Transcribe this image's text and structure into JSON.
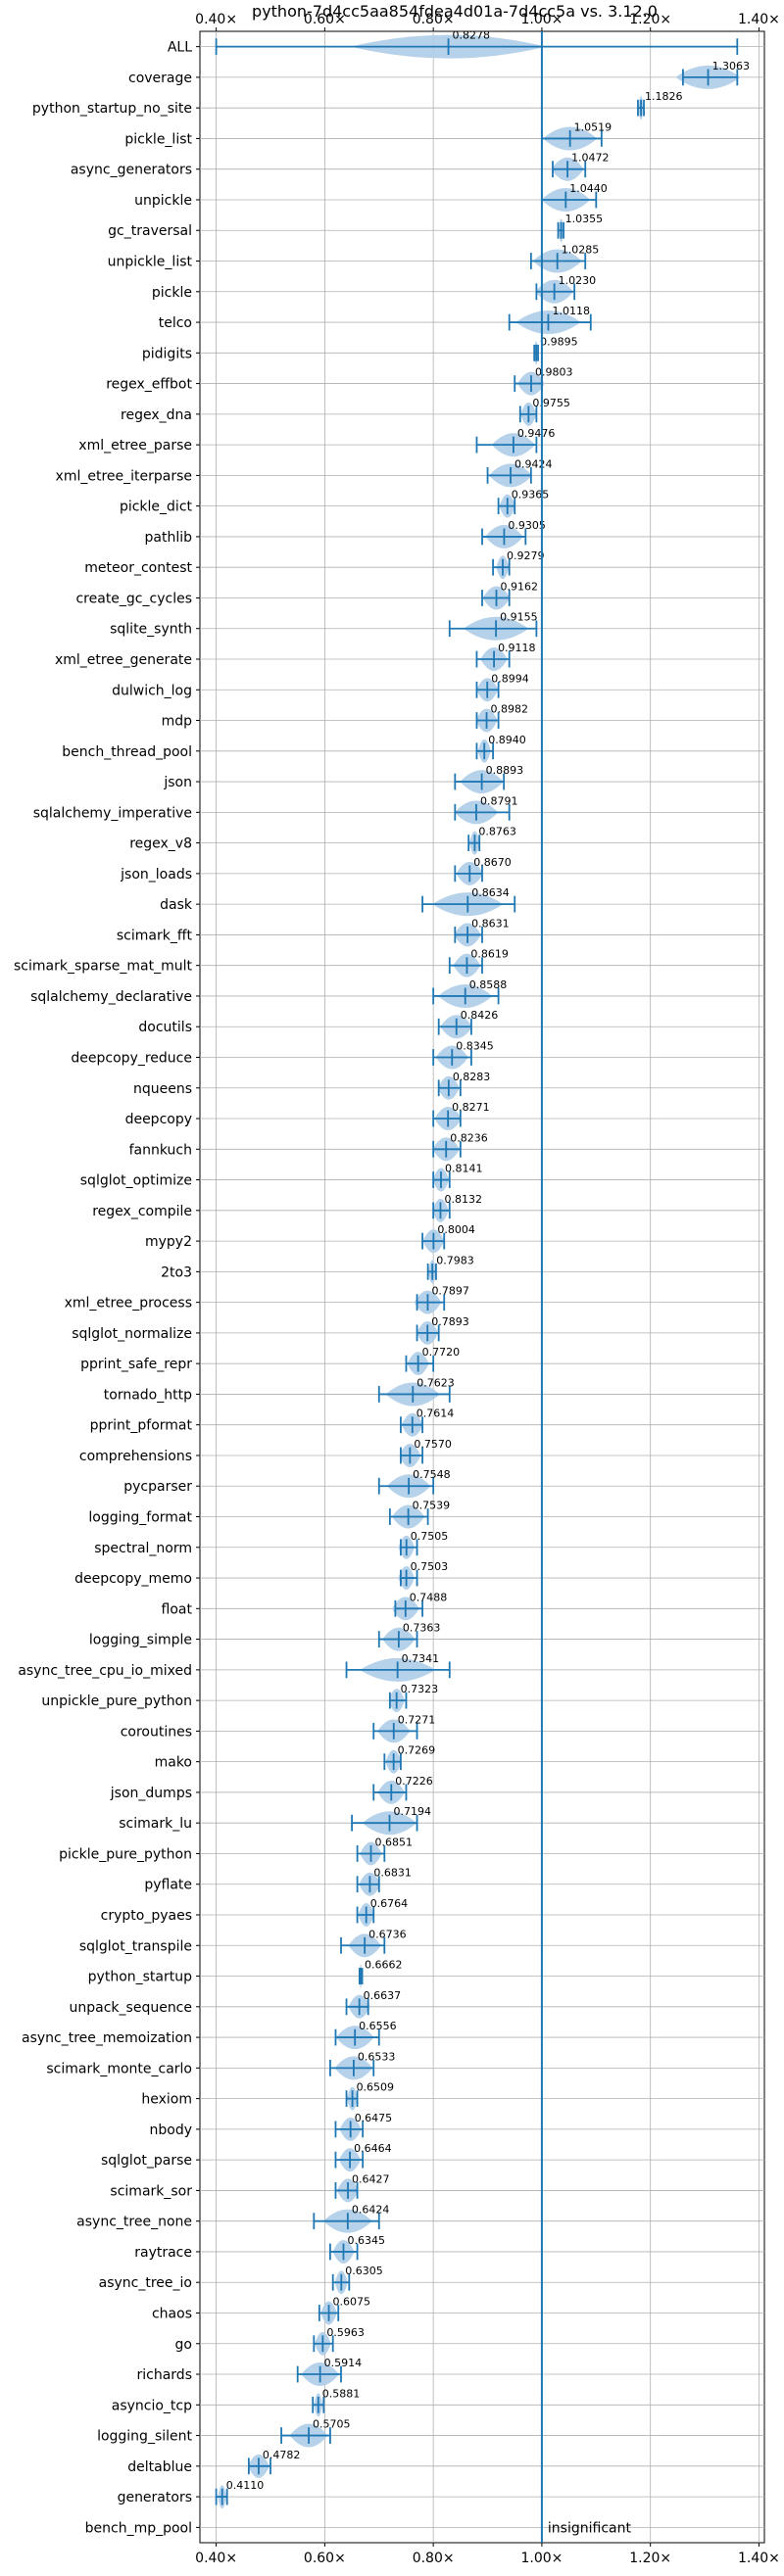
{
  "chart_data": {
    "type": "violin",
    "title": "python-7d4cc5aa854fdea4d01a-7d4cc5a vs. 3.12.0",
    "xlim": [
      0.37,
      1.41
    ],
    "x_ticks": [
      0.4,
      0.6,
      0.8,
      1.0,
      1.2,
      1.4
    ],
    "x_tick_labels": [
      "0.40×",
      "0.60×",
      "0.80×",
      "1.00×",
      "1.20×",
      "1.40×"
    ],
    "reference_line": 1.0,
    "grid": true,
    "color": "#1f77b4",
    "fill_color": "#aecde8",
    "rows": [
      {
        "name": "ALL",
        "value": 0.8278,
        "min": 0.4,
        "max": 1.36,
        "label": "0.8278",
        "spread": 0.18
      },
      {
        "name": "coverage",
        "value": 1.3063,
        "min": 1.26,
        "max": 1.36,
        "label": "1.3063",
        "spread": 0.06
      },
      {
        "name": "python_startup_no_site",
        "value": 1.1826,
        "min": 1.177,
        "max": 1.188,
        "label": "1.1826",
        "spread": 0.005
      },
      {
        "name": "pickle_list",
        "value": 1.0519,
        "min": 1.0,
        "max": 1.11,
        "label": "1.0519",
        "spread": 0.05
      },
      {
        "name": "async_generators",
        "value": 1.0472,
        "min": 1.02,
        "max": 1.08,
        "label": "1.0472",
        "spread": 0.03
      },
      {
        "name": "unpickle",
        "value": 1.044,
        "min": 1.0,
        "max": 1.1,
        "label": "1.0440",
        "spread": 0.045
      },
      {
        "name": "gc_traversal",
        "value": 1.0355,
        "min": 1.03,
        "max": 1.04,
        "label": "1.0355",
        "spread": 0.005
      },
      {
        "name": "unpickle_list",
        "value": 1.0285,
        "min": 0.98,
        "max": 1.08,
        "label": "1.0285",
        "spread": 0.045
      },
      {
        "name": "pickle",
        "value": 1.023,
        "min": 0.99,
        "max": 1.06,
        "label": "1.0230",
        "spread": 0.035
      },
      {
        "name": "telco",
        "value": 1.0118,
        "min": 0.94,
        "max": 1.09,
        "label": "1.0118",
        "spread": 0.06
      },
      {
        "name": "pidigits",
        "value": 0.9895,
        "min": 0.986,
        "max": 0.993,
        "label": "0.9895",
        "spread": 0.004
      },
      {
        "name": "regex_effbot",
        "value": 0.9803,
        "min": 0.95,
        "max": 1.0,
        "label": "0.9803",
        "spread": 0.025
      },
      {
        "name": "regex_dna",
        "value": 0.9755,
        "min": 0.96,
        "max": 0.99,
        "label": "0.9755",
        "spread": 0.015
      },
      {
        "name": "xml_etree_parse",
        "value": 0.9476,
        "min": 0.88,
        "max": 0.99,
        "label": "0.9476",
        "spread": 0.04
      },
      {
        "name": "xml_etree_iterparse",
        "value": 0.9424,
        "min": 0.9,
        "max": 0.98,
        "label": "0.9424",
        "spread": 0.04
      },
      {
        "name": "pickle_dict",
        "value": 0.9365,
        "min": 0.92,
        "max": 0.95,
        "label": "0.9365",
        "spread": 0.015
      },
      {
        "name": "pathlib",
        "value": 0.9305,
        "min": 0.89,
        "max": 0.97,
        "label": "0.9305",
        "spread": 0.035
      },
      {
        "name": "meteor_contest",
        "value": 0.9279,
        "min": 0.91,
        "max": 0.94,
        "label": "0.9279",
        "spread": 0.012
      },
      {
        "name": "create_gc_cycles",
        "value": 0.9162,
        "min": 0.89,
        "max": 0.94,
        "label": "0.9162",
        "spread": 0.025
      },
      {
        "name": "sqlite_synth",
        "value": 0.9155,
        "min": 0.83,
        "max": 0.99,
        "label": "0.9155",
        "spread": 0.06
      },
      {
        "name": "xml_etree_generate",
        "value": 0.9118,
        "min": 0.88,
        "max": 0.94,
        "label": "0.9118",
        "spread": 0.025
      },
      {
        "name": "dulwich_log",
        "value": 0.8994,
        "min": 0.88,
        "max": 0.92,
        "label": "0.8994",
        "spread": 0.02
      },
      {
        "name": "mdp",
        "value": 0.8982,
        "min": 0.88,
        "max": 0.92,
        "label": "0.8982",
        "spread": 0.02
      },
      {
        "name": "bench_thread_pool",
        "value": 0.894,
        "min": 0.88,
        "max": 0.91,
        "label": "0.8940",
        "spread": 0.012
      },
      {
        "name": "json",
        "value": 0.8893,
        "min": 0.84,
        "max": 0.93,
        "label": "0.8893",
        "spread": 0.04
      },
      {
        "name": "sqlalchemy_imperative",
        "value": 0.8791,
        "min": 0.84,
        "max": 0.94,
        "label": "0.8791",
        "spread": 0.04
      },
      {
        "name": "regex_v8",
        "value": 0.8763,
        "min": 0.865,
        "max": 0.885,
        "label": "0.8763",
        "spread": 0.01
      },
      {
        "name": "json_loads",
        "value": 0.867,
        "min": 0.84,
        "max": 0.89,
        "label": "0.8670",
        "spread": 0.025
      },
      {
        "name": "dask",
        "value": 0.8634,
        "min": 0.78,
        "max": 0.95,
        "label": "0.8634",
        "spread": 0.065
      },
      {
        "name": "scimark_fft",
        "value": 0.8631,
        "min": 0.84,
        "max": 0.89,
        "label": "0.8631",
        "spread": 0.025
      },
      {
        "name": "scimark_sparse_mat_mult",
        "value": 0.8619,
        "min": 0.83,
        "max": 0.89,
        "label": "0.8619",
        "spread": 0.025
      },
      {
        "name": "sqlalchemy_declarative",
        "value": 0.8588,
        "min": 0.8,
        "max": 0.92,
        "label": "0.8588",
        "spread": 0.05
      },
      {
        "name": "docutils",
        "value": 0.8426,
        "min": 0.81,
        "max": 0.87,
        "label": "0.8426",
        "spread": 0.03
      },
      {
        "name": "deepcopy_reduce",
        "value": 0.8345,
        "min": 0.8,
        "max": 0.87,
        "label": "0.8345",
        "spread": 0.03
      },
      {
        "name": "nqueens",
        "value": 0.8283,
        "min": 0.81,
        "max": 0.85,
        "label": "0.8283",
        "spread": 0.02
      },
      {
        "name": "deepcopy",
        "value": 0.8271,
        "min": 0.8,
        "max": 0.85,
        "label": "0.8271",
        "spread": 0.025
      },
      {
        "name": "fannkuch",
        "value": 0.8236,
        "min": 0.8,
        "max": 0.85,
        "label": "0.8236",
        "spread": 0.025
      },
      {
        "name": "sqlglot_optimize",
        "value": 0.8141,
        "min": 0.8,
        "max": 0.83,
        "label": "0.8141",
        "spread": 0.015
      },
      {
        "name": "regex_compile",
        "value": 0.8132,
        "min": 0.8,
        "max": 0.83,
        "label": "0.8132",
        "spread": 0.015
      },
      {
        "name": "mypy2",
        "value": 0.8004,
        "min": 0.78,
        "max": 0.82,
        "label": "0.8004",
        "spread": 0.02
      },
      {
        "name": "2to3",
        "value": 0.7983,
        "min": 0.79,
        "max": 0.805,
        "label": "0.7983",
        "spread": 0.008
      },
      {
        "name": "xml_etree_process",
        "value": 0.7897,
        "min": 0.77,
        "max": 0.82,
        "label": "0.7897",
        "spread": 0.025
      },
      {
        "name": "sqlglot_normalize",
        "value": 0.7893,
        "min": 0.77,
        "max": 0.81,
        "label": "0.7893",
        "spread": 0.02
      },
      {
        "name": "pprint_safe_repr",
        "value": 0.772,
        "min": 0.75,
        "max": 0.8,
        "label": "0.7720",
        "spread": 0.02
      },
      {
        "name": "tornado_http",
        "value": 0.7623,
        "min": 0.7,
        "max": 0.83,
        "label": "0.7623",
        "spread": 0.05
      },
      {
        "name": "pprint_pformat",
        "value": 0.7614,
        "min": 0.74,
        "max": 0.78,
        "label": "0.7614",
        "spread": 0.02
      },
      {
        "name": "comprehensions",
        "value": 0.757,
        "min": 0.74,
        "max": 0.78,
        "label": "0.7570",
        "spread": 0.02
      },
      {
        "name": "pycparser",
        "value": 0.7548,
        "min": 0.7,
        "max": 0.8,
        "label": "0.7548",
        "spread": 0.04
      },
      {
        "name": "logging_format",
        "value": 0.7539,
        "min": 0.72,
        "max": 0.79,
        "label": "0.7539",
        "spread": 0.03
      },
      {
        "name": "spectral_norm",
        "value": 0.7505,
        "min": 0.74,
        "max": 0.77,
        "label": "0.7505",
        "spread": 0.015
      },
      {
        "name": "deepcopy_memo",
        "value": 0.7503,
        "min": 0.74,
        "max": 0.77,
        "label": "0.7503",
        "spread": 0.015
      },
      {
        "name": "float",
        "value": 0.7488,
        "min": 0.73,
        "max": 0.78,
        "label": "0.7488",
        "spread": 0.025
      },
      {
        "name": "logging_simple",
        "value": 0.7363,
        "min": 0.7,
        "max": 0.77,
        "label": "0.7363",
        "spread": 0.03
      },
      {
        "name": "async_tree_cpu_io_mixed",
        "value": 0.7341,
        "min": 0.64,
        "max": 0.83,
        "label": "0.7341",
        "spread": 0.07
      },
      {
        "name": "unpickle_pure_python",
        "value": 0.7323,
        "min": 0.72,
        "max": 0.75,
        "label": "0.7323",
        "spread": 0.015
      },
      {
        "name": "coroutines",
        "value": 0.7271,
        "min": 0.69,
        "max": 0.77,
        "label": "0.7271",
        "spread": 0.03
      },
      {
        "name": "mako",
        "value": 0.7269,
        "min": 0.71,
        "max": 0.74,
        "label": "0.7269",
        "spread": 0.015
      },
      {
        "name": "json_dumps",
        "value": 0.7226,
        "min": 0.69,
        "max": 0.75,
        "label": "0.7226",
        "spread": 0.025
      },
      {
        "name": "scimark_lu",
        "value": 0.7194,
        "min": 0.65,
        "max": 0.77,
        "label": "0.7194",
        "spread": 0.05
      },
      {
        "name": "pickle_pure_python",
        "value": 0.6851,
        "min": 0.66,
        "max": 0.71,
        "label": "0.6851",
        "spread": 0.02
      },
      {
        "name": "pyflate",
        "value": 0.6831,
        "min": 0.66,
        "max": 0.7,
        "label": "0.6831",
        "spread": 0.02
      },
      {
        "name": "crypto_pyaes",
        "value": 0.6764,
        "min": 0.66,
        "max": 0.69,
        "label": "0.6764",
        "spread": 0.015
      },
      {
        "name": "sqlglot_transpile",
        "value": 0.6736,
        "min": 0.63,
        "max": 0.71,
        "label": "0.6736",
        "spread": 0.03
      },
      {
        "name": "python_startup",
        "value": 0.6662,
        "min": 0.664,
        "max": 0.669,
        "label": "0.6662",
        "spread": 0.003
      },
      {
        "name": "unpack_sequence",
        "value": 0.6637,
        "min": 0.64,
        "max": 0.68,
        "label": "0.6637",
        "spread": 0.02
      },
      {
        "name": "async_tree_memoization",
        "value": 0.6556,
        "min": 0.62,
        "max": 0.7,
        "label": "0.6556",
        "spread": 0.035
      },
      {
        "name": "scimark_monte_carlo",
        "value": 0.6533,
        "min": 0.61,
        "max": 0.69,
        "label": "0.6533",
        "spread": 0.035
      },
      {
        "name": "hexiom",
        "value": 0.6509,
        "min": 0.64,
        "max": 0.66,
        "label": "0.6509",
        "spread": 0.01
      },
      {
        "name": "nbody",
        "value": 0.6475,
        "min": 0.62,
        "max": 0.67,
        "label": "0.6475",
        "spread": 0.02
      },
      {
        "name": "sqlglot_parse",
        "value": 0.6464,
        "min": 0.62,
        "max": 0.67,
        "label": "0.6464",
        "spread": 0.02
      },
      {
        "name": "scimark_sor",
        "value": 0.6427,
        "min": 0.62,
        "max": 0.66,
        "label": "0.6427",
        "spread": 0.02
      },
      {
        "name": "async_tree_none",
        "value": 0.6424,
        "min": 0.58,
        "max": 0.7,
        "label": "0.6424",
        "spread": 0.045
      },
      {
        "name": "raytrace",
        "value": 0.6345,
        "min": 0.61,
        "max": 0.66,
        "label": "0.6345",
        "spread": 0.02
      },
      {
        "name": "async_tree_io",
        "value": 0.6305,
        "min": 0.615,
        "max": 0.645,
        "label": "0.6305",
        "spread": 0.012
      },
      {
        "name": "chaos",
        "value": 0.6075,
        "min": 0.59,
        "max": 0.625,
        "label": "0.6075",
        "spread": 0.015
      },
      {
        "name": "go",
        "value": 0.5963,
        "min": 0.58,
        "max": 0.615,
        "label": "0.5963",
        "spread": 0.015
      },
      {
        "name": "richards",
        "value": 0.5914,
        "min": 0.55,
        "max": 0.63,
        "label": "0.5914",
        "spread": 0.035
      },
      {
        "name": "asyncio_tcp",
        "value": 0.5881,
        "min": 0.578,
        "max": 0.598,
        "label": "0.5881",
        "spread": 0.008
      },
      {
        "name": "logging_silent",
        "value": 0.5705,
        "min": 0.52,
        "max": 0.61,
        "label": "0.5705",
        "spread": 0.035
      },
      {
        "name": "deltablue",
        "value": 0.4782,
        "min": 0.46,
        "max": 0.5,
        "label": "0.4782",
        "spread": 0.02
      },
      {
        "name": "generators",
        "value": 0.411,
        "min": 0.4,
        "max": 0.42,
        "label": "0.4110",
        "spread": 0.008
      },
      {
        "name": "bench_mp_pool",
        "value": null,
        "label": "",
        "note": "insignificant"
      }
    ]
  }
}
